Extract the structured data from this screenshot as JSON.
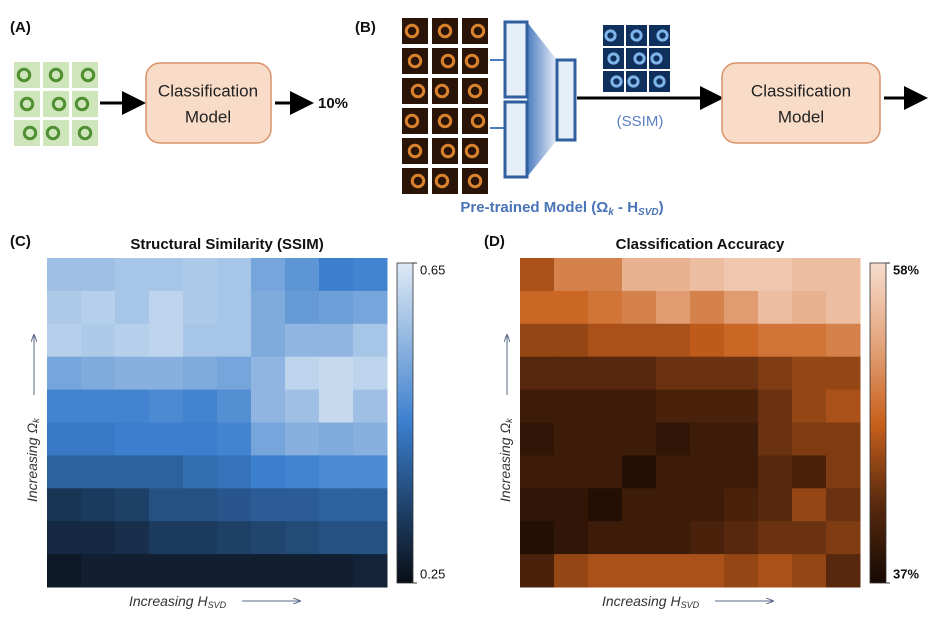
{
  "panel_a": {
    "label": "(A)",
    "model_box": [
      "Classification",
      "Model"
    ],
    "output": "10%"
  },
  "panel_b": {
    "label": "(B)",
    "metric": "(SSIM)",
    "model_box": [
      "Classification",
      "Model"
    ],
    "pretrained": [
      "Pre-trained Model (Ω",
      "k",
      " - H",
      "SVD",
      ")"
    ]
  },
  "panel_c": {
    "label": "(C)",
    "title": "Structural Similarity (SSIM)",
    "x_label": [
      "Increasing H",
      "SVD"
    ],
    "y_label": [
      "Increasing Ω",
      "k"
    ],
    "clim": [
      0.25,
      0.65
    ],
    "cticks": [
      0.65,
      0.25
    ],
    "colormap": [
      "#0a0e16",
      "#20456f",
      "#3b7fce",
      "#8fb5e0",
      "#dde9f6"
    ],
    "values": [
      [
        0.57,
        0.57,
        0.58,
        0.58,
        0.59,
        0.58,
        0.52,
        0.49,
        0.45,
        0.46
      ],
      [
        0.59,
        0.6,
        0.58,
        0.61,
        0.59,
        0.58,
        0.53,
        0.5,
        0.51,
        0.52
      ],
      [
        0.6,
        0.59,
        0.6,
        0.61,
        0.58,
        0.58,
        0.53,
        0.55,
        0.55,
        0.58
      ],
      [
        0.52,
        0.53,
        0.54,
        0.54,
        0.53,
        0.52,
        0.55,
        0.61,
        0.62,
        0.61
      ],
      [
        0.46,
        0.46,
        0.46,
        0.47,
        0.46,
        0.48,
        0.55,
        0.57,
        0.62,
        0.57
      ],
      [
        0.44,
        0.44,
        0.45,
        0.45,
        0.45,
        0.46,
        0.52,
        0.54,
        0.53,
        0.54
      ],
      [
        0.4,
        0.4,
        0.4,
        0.4,
        0.42,
        0.43,
        0.45,
        0.46,
        0.47,
        0.47
      ],
      [
        0.32,
        0.33,
        0.34,
        0.37,
        0.37,
        0.38,
        0.39,
        0.39,
        0.4,
        0.4
      ],
      [
        0.3,
        0.3,
        0.31,
        0.33,
        0.33,
        0.34,
        0.35,
        0.36,
        0.37,
        0.37
      ],
      [
        0.27,
        0.28,
        0.28,
        0.28,
        0.28,
        0.28,
        0.28,
        0.28,
        0.28,
        0.29
      ]
    ]
  },
  "panel_d": {
    "label": "(D)",
    "title": "Classification Accuracy",
    "x_label": [
      "Increasing H",
      "SVD"
    ],
    "y_label": [
      "Increasing Ω",
      "k"
    ],
    "clim": [
      37,
      58
    ],
    "cticks": [
      {
        "value": 58,
        "label": "58%"
      },
      {
        "value": 37,
        "label": "37%"
      }
    ],
    "colormap": [
      "#170903",
      "#5a2a0e",
      "#c8601c",
      "#e4a57e",
      "#f6dccd"
    ],
    "values": [
      [
        46,
        50,
        50,
        54,
        54,
        55,
        56,
        56,
        55,
        55
      ],
      [
        48,
        48,
        49,
        50,
        52,
        50,
        52,
        55,
        54,
        55
      ],
      [
        45,
        45,
        46,
        46,
        46,
        47,
        48,
        49,
        49,
        50
      ],
      [
        42,
        42,
        42,
        42,
        43,
        43,
        43,
        44,
        45,
        45
      ],
      [
        40,
        40,
        40,
        40,
        41,
        41,
        41,
        43,
        45,
        46
      ],
      [
        39,
        40,
        40,
        40,
        39,
        40,
        40,
        43,
        44,
        44
      ],
      [
        40,
        40,
        40,
        38,
        40,
        40,
        40,
        42,
        41,
        44
      ],
      [
        39,
        39,
        38,
        40,
        40,
        40,
        41,
        42,
        45,
        43
      ],
      [
        38,
        39,
        40,
        40,
        40,
        41,
        42,
        43,
        43,
        44
      ],
      [
        41,
        45,
        46,
        46,
        46,
        46,
        45,
        46,
        45,
        42
      ]
    ]
  }
}
